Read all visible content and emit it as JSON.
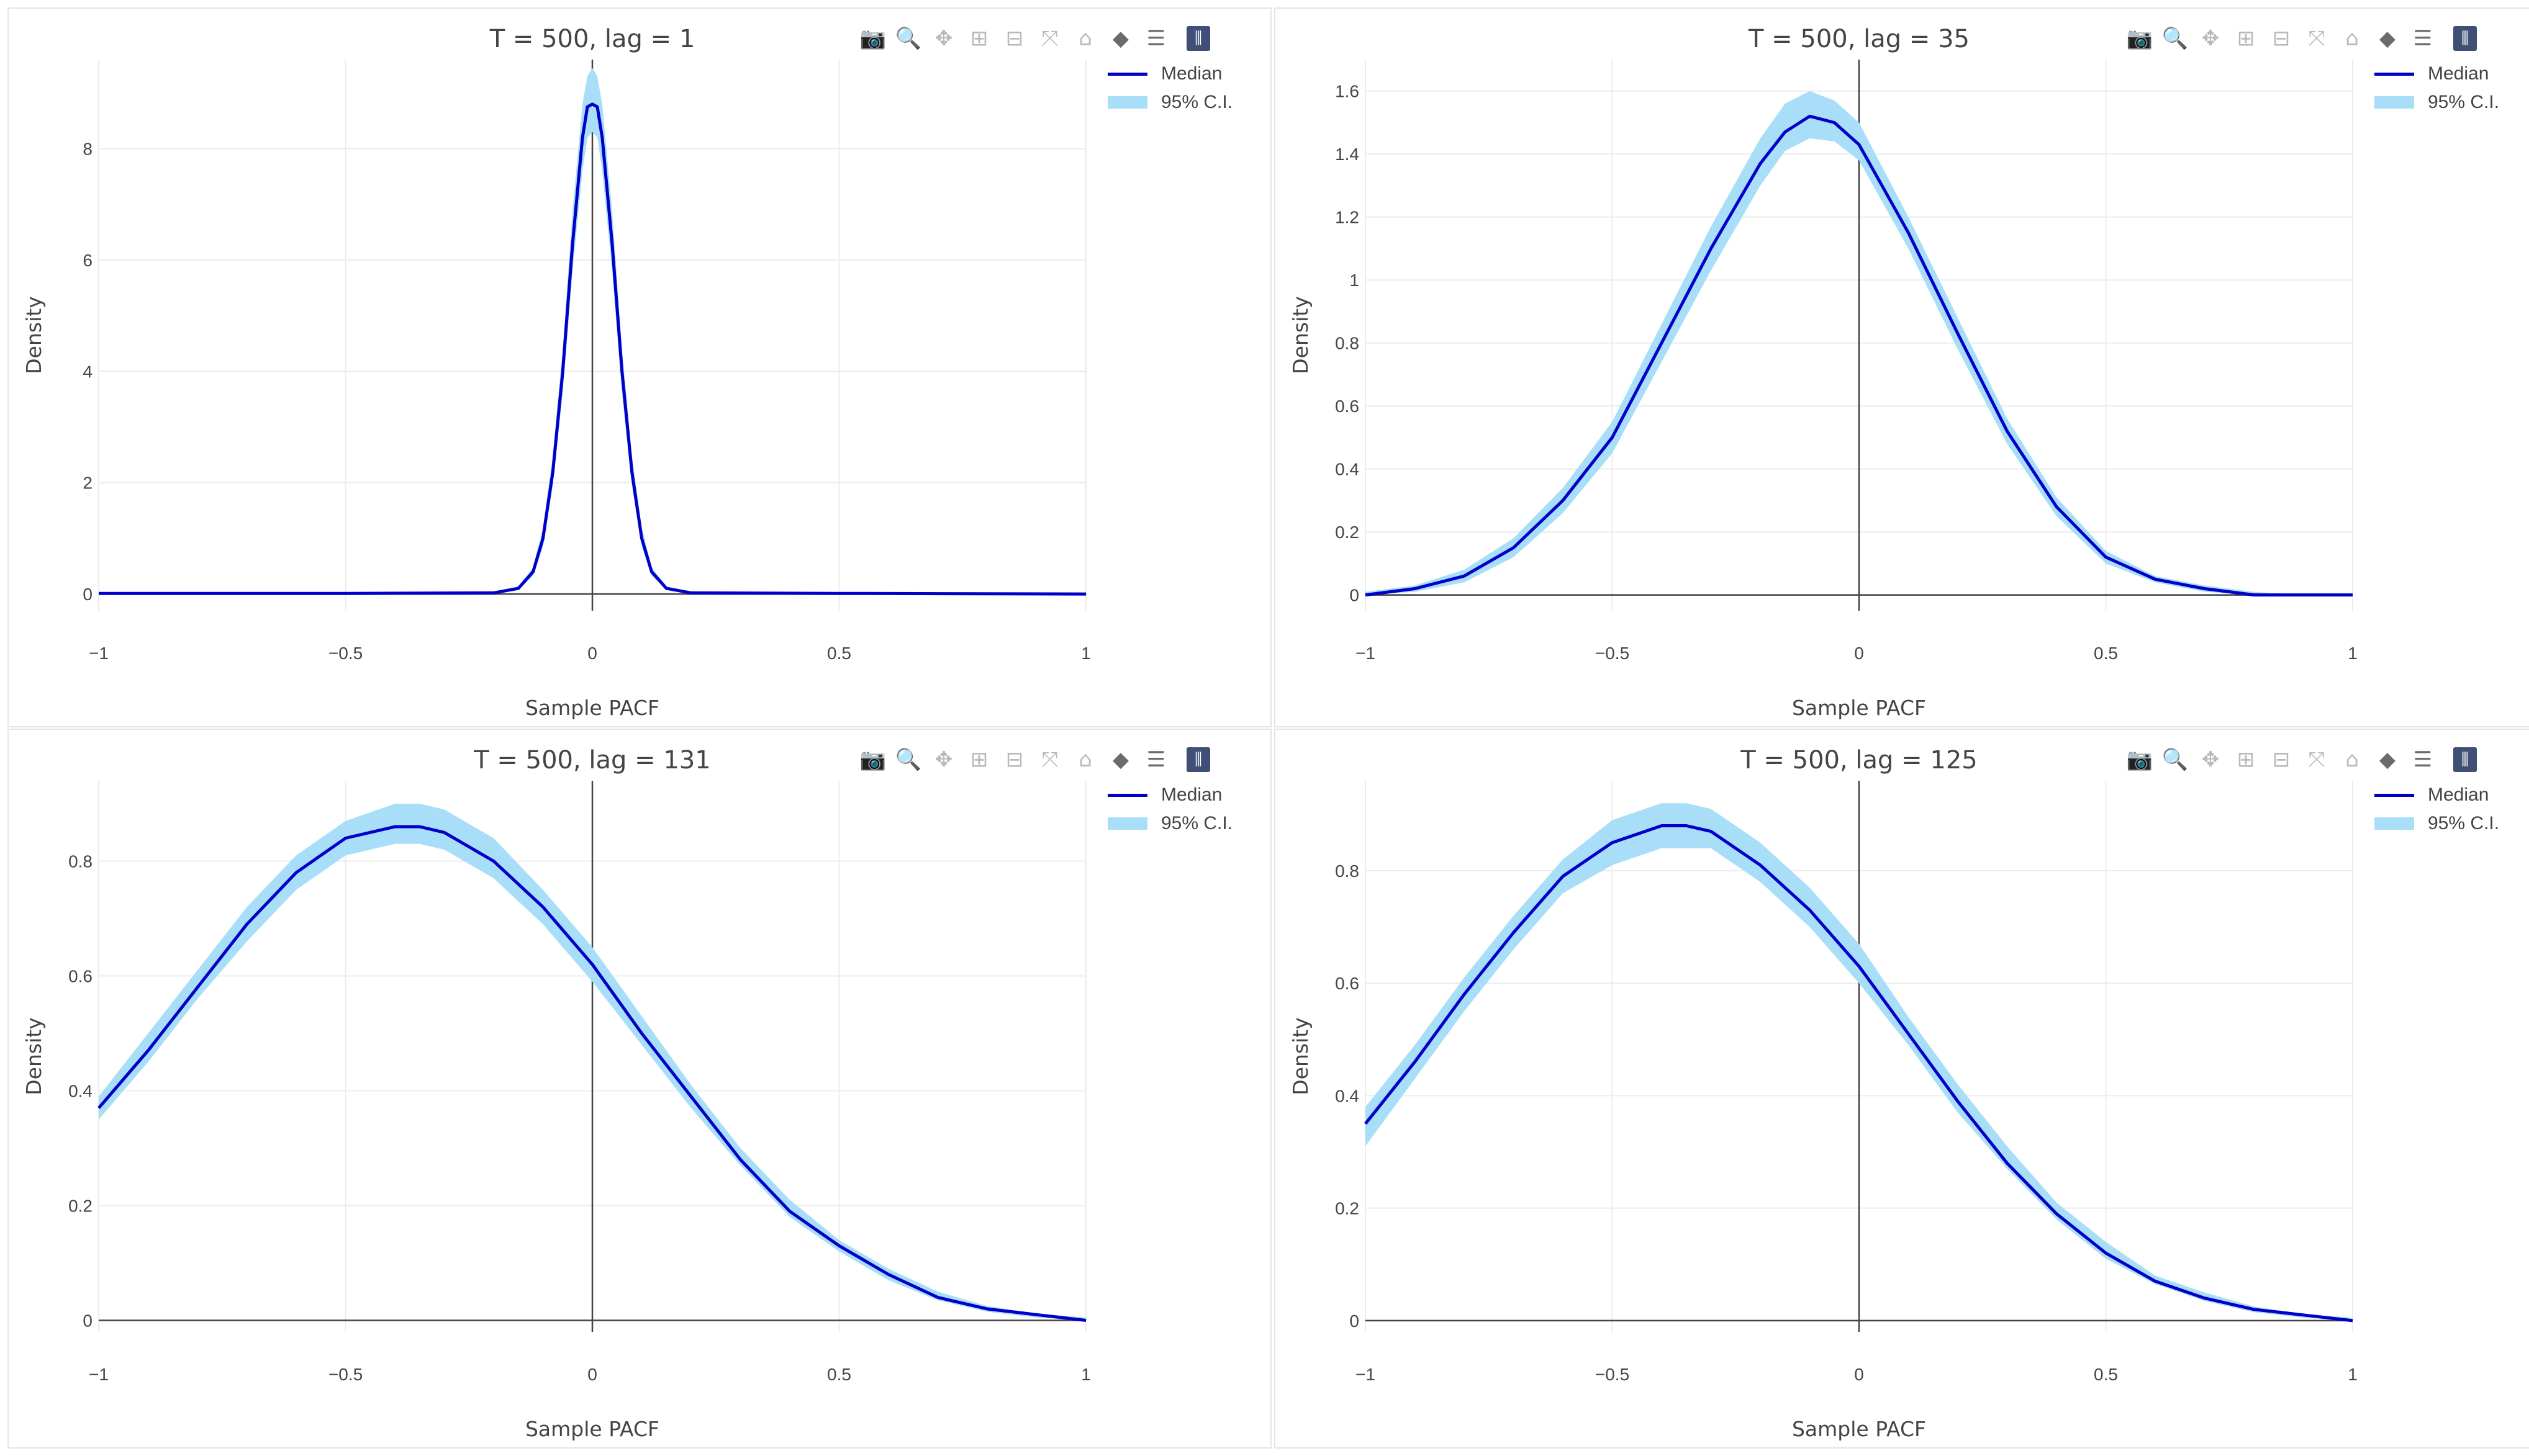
{
  "colors": {
    "median": "#0000c8",
    "ci_band": "#a8def8",
    "grid": "#ececec",
    "axis": "#444444",
    "zeroline": "#444444",
    "text": "#444444",
    "modebar_logo": "#3f4f75"
  },
  "modebar": {
    "icons": [
      "camera-icon",
      "zoom-icon",
      "pan-icon",
      "zoom-in-icon",
      "zoom-out-icon",
      "autoscale-icon",
      "reset-axes-icon",
      "hover-closest-icon",
      "hover-compare-icon",
      "plotly-logo-icon"
    ]
  },
  "legend": {
    "median_label": "Median",
    "ci_label": "95% C.I."
  },
  "chart_data": [
    {
      "type": "line",
      "title": "T = 500, lag = 1",
      "xlabel": "Sample PACF",
      "ylabel": "Density",
      "xlim": [
        -1,
        1
      ],
      "ylim": [
        -0.3,
        9.6
      ],
      "xticks": [
        -1,
        -0.5,
        0,
        0.5,
        1
      ],
      "xtick_labels": [
        "−1",
        "−0.5",
        "0",
        "0.5",
        "1"
      ],
      "yticks": [
        0,
        2,
        4,
        6,
        8
      ],
      "ytick_labels": [
        "0",
        "2",
        "4",
        "6",
        "8"
      ],
      "grid": true,
      "legend_position": "top-right",
      "series": [
        {
          "name": "Median",
          "x": [
            -1,
            -0.5,
            -0.2,
            -0.15,
            -0.12,
            -0.1,
            -0.08,
            -0.06,
            -0.04,
            -0.02,
            -0.01,
            0,
            0.01,
            0.02,
            0.04,
            0.06,
            0.08,
            0.1,
            0.12,
            0.15,
            0.2,
            0.5,
            1
          ],
          "y": [
            0.01,
            0.01,
            0.02,
            0.1,
            0.4,
            1.0,
            2.2,
            4.0,
            6.3,
            8.2,
            8.75,
            8.8,
            8.75,
            8.2,
            6.3,
            4.0,
            2.2,
            1.0,
            0.4,
            0.1,
            0.02,
            0.01,
            0.0
          ]
        },
        {
          "name": "95% C.I.",
          "x": [
            -1,
            -0.5,
            -0.2,
            -0.15,
            -0.12,
            -0.1,
            -0.08,
            -0.06,
            -0.04,
            -0.02,
            -0.01,
            0,
            0.01,
            0.02,
            0.04,
            0.06,
            0.08,
            0.1,
            0.12,
            0.15,
            0.2,
            0.5,
            1
          ],
          "lower": [
            0.0,
            0.0,
            0.01,
            0.07,
            0.33,
            0.85,
            1.95,
            3.6,
            5.8,
            7.6,
            8.2,
            8.3,
            8.2,
            7.6,
            5.8,
            3.6,
            1.95,
            0.85,
            0.33,
            0.07,
            0.01,
            0.0,
            0.0
          ],
          "upper": [
            0.02,
            0.02,
            0.04,
            0.14,
            0.48,
            1.2,
            2.5,
            4.4,
            6.9,
            8.8,
            9.3,
            9.45,
            9.3,
            8.8,
            6.9,
            4.4,
            2.5,
            1.2,
            0.48,
            0.14,
            0.04,
            0.02,
            0.01
          ]
        }
      ]
    },
    {
      "type": "line",
      "title": "T = 500, lag = 35",
      "xlabel": "Sample PACF",
      "ylabel": "Density",
      "xlim": [
        -1,
        1
      ],
      "ylim": [
        -0.05,
        1.7
      ],
      "xticks": [
        -1,
        -0.5,
        0,
        0.5,
        1
      ],
      "xtick_labels": [
        "−1",
        "−0.5",
        "0",
        "0.5",
        "1"
      ],
      "yticks": [
        0,
        0.2,
        0.4,
        0.6,
        0.8,
        1,
        1.2,
        1.4,
        1.6
      ],
      "ytick_labels": [
        "0",
        "0.2",
        "0.4",
        "0.6",
        "0.8",
        "1",
        "1.2",
        "1.4",
        "1.6"
      ],
      "grid": true,
      "legend_position": "top-right",
      "series": [
        {
          "name": "Median",
          "x": [
            -1,
            -0.9,
            -0.8,
            -0.7,
            -0.6,
            -0.5,
            -0.4,
            -0.3,
            -0.2,
            -0.15,
            -0.1,
            -0.05,
            0,
            0.1,
            0.2,
            0.3,
            0.4,
            0.5,
            0.6,
            0.7,
            0.8,
            0.9,
            1
          ],
          "y": [
            0.0,
            0.02,
            0.06,
            0.15,
            0.3,
            0.5,
            0.8,
            1.1,
            1.37,
            1.47,
            1.52,
            1.5,
            1.43,
            1.15,
            0.83,
            0.52,
            0.28,
            0.12,
            0.05,
            0.02,
            0.0,
            0.0,
            0.0
          ]
        },
        {
          "name": "95% C.I.",
          "x": [
            -1,
            -0.9,
            -0.8,
            -0.7,
            -0.6,
            -0.5,
            -0.4,
            -0.3,
            -0.2,
            -0.15,
            -0.1,
            -0.05,
            0,
            0.1,
            0.2,
            0.3,
            0.4,
            0.5,
            0.6,
            0.7,
            0.8,
            0.9,
            1
          ],
          "lower": [
            0.0,
            0.01,
            0.04,
            0.12,
            0.26,
            0.45,
            0.74,
            1.03,
            1.3,
            1.41,
            1.45,
            1.44,
            1.38,
            1.1,
            0.78,
            0.48,
            0.25,
            0.1,
            0.04,
            0.01,
            0.0,
            0.0,
            0.0
          ],
          "upper": [
            0.01,
            0.03,
            0.08,
            0.18,
            0.34,
            0.55,
            0.86,
            1.17,
            1.45,
            1.56,
            1.6,
            1.57,
            1.5,
            1.2,
            0.88,
            0.56,
            0.31,
            0.14,
            0.06,
            0.03,
            0.01,
            0.0,
            0.0
          ]
        }
      ]
    },
    {
      "type": "line",
      "title": "T = 500, lag = 131",
      "xlabel": "Sample PACF",
      "ylabel": "Density",
      "xlim": [
        -1,
        1
      ],
      "ylim": [
        -0.02,
        0.94
      ],
      "xticks": [
        -1,
        -0.5,
        0,
        0.5,
        1
      ],
      "xtick_labels": [
        "−1",
        "−0.5",
        "0",
        "0.5",
        "1"
      ],
      "yticks": [
        0,
        0.2,
        0.4,
        0.6,
        0.8
      ],
      "ytick_labels": [
        "0",
        "0.2",
        "0.4",
        "0.6",
        "0.8"
      ],
      "grid": true,
      "legend_position": "top-right",
      "series": [
        {
          "name": "Median",
          "x": [
            -1,
            -0.9,
            -0.8,
            -0.7,
            -0.6,
            -0.5,
            -0.4,
            -0.35,
            -0.3,
            -0.2,
            -0.1,
            0,
            0.1,
            0.2,
            0.3,
            0.4,
            0.5,
            0.6,
            0.7,
            0.8,
            0.9,
            1
          ],
          "y": [
            0.37,
            0.47,
            0.58,
            0.69,
            0.78,
            0.84,
            0.86,
            0.86,
            0.85,
            0.8,
            0.72,
            0.62,
            0.5,
            0.39,
            0.28,
            0.19,
            0.13,
            0.08,
            0.04,
            0.02,
            0.01,
            0.0
          ]
        },
        {
          "name": "95% C.I.",
          "x": [
            -1,
            -0.9,
            -0.8,
            -0.7,
            -0.6,
            -0.5,
            -0.4,
            -0.35,
            -0.3,
            -0.2,
            -0.1,
            0,
            0.1,
            0.2,
            0.3,
            0.4,
            0.5,
            0.6,
            0.7,
            0.8,
            0.9,
            1
          ],
          "lower": [
            0.35,
            0.45,
            0.56,
            0.66,
            0.75,
            0.81,
            0.83,
            0.83,
            0.82,
            0.77,
            0.69,
            0.59,
            0.48,
            0.37,
            0.27,
            0.18,
            0.12,
            0.07,
            0.035,
            0.015,
            0.005,
            0.0
          ],
          "upper": [
            0.39,
            0.5,
            0.61,
            0.72,
            0.81,
            0.87,
            0.9,
            0.9,
            0.89,
            0.84,
            0.75,
            0.65,
            0.53,
            0.41,
            0.3,
            0.21,
            0.14,
            0.09,
            0.05,
            0.025,
            0.012,
            0.005
          ]
        }
      ]
    },
    {
      "type": "line",
      "title": "T = 500, lag = 125",
      "xlabel": "Sample PACF",
      "ylabel": "Density",
      "xlim": [
        -1,
        1
      ],
      "ylim": [
        -0.02,
        0.96
      ],
      "xticks": [
        -1,
        -0.5,
        0,
        0.5,
        1
      ],
      "xtick_labels": [
        "−1",
        "−0.5",
        "0",
        "0.5",
        "1"
      ],
      "yticks": [
        0,
        0.2,
        0.4,
        0.6,
        0.8
      ],
      "ytick_labels": [
        "0",
        "0.2",
        "0.4",
        "0.6",
        "0.8"
      ],
      "grid": true,
      "legend_position": "top-right",
      "series": [
        {
          "name": "Median",
          "x": [
            -1,
            -0.9,
            -0.8,
            -0.7,
            -0.6,
            -0.5,
            -0.4,
            -0.35,
            -0.3,
            -0.2,
            -0.1,
            0,
            0.1,
            0.2,
            0.3,
            0.4,
            0.5,
            0.6,
            0.7,
            0.8,
            0.9,
            1
          ],
          "y": [
            0.35,
            0.46,
            0.58,
            0.69,
            0.79,
            0.85,
            0.88,
            0.88,
            0.87,
            0.81,
            0.73,
            0.63,
            0.51,
            0.39,
            0.28,
            0.19,
            0.12,
            0.07,
            0.04,
            0.02,
            0.01,
            0.0
          ]
        },
        {
          "name": "95% C.I.",
          "x": [
            -1,
            -0.9,
            -0.8,
            -0.7,
            -0.6,
            -0.5,
            -0.4,
            -0.35,
            -0.3,
            -0.2,
            -0.1,
            0,
            0.1,
            0.2,
            0.3,
            0.4,
            0.5,
            0.6,
            0.7,
            0.8,
            0.9,
            1
          ],
          "lower": [
            0.31,
            0.43,
            0.55,
            0.66,
            0.76,
            0.81,
            0.84,
            0.84,
            0.84,
            0.78,
            0.7,
            0.6,
            0.49,
            0.37,
            0.27,
            0.18,
            0.11,
            0.065,
            0.035,
            0.015,
            0.005,
            0.0
          ],
          "upper": [
            0.38,
            0.49,
            0.61,
            0.72,
            0.82,
            0.89,
            0.92,
            0.92,
            0.91,
            0.85,
            0.77,
            0.67,
            0.54,
            0.42,
            0.31,
            0.21,
            0.14,
            0.08,
            0.05,
            0.025,
            0.012,
            0.005
          ]
        }
      ]
    }
  ]
}
